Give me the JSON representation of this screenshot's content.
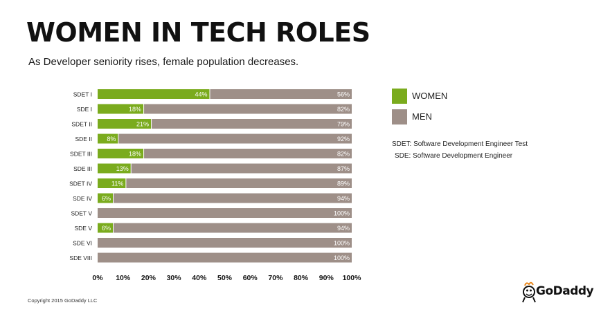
{
  "header": {
    "title": "WOMEN IN TECH ROLES",
    "subtitle": "As Developer seniority rises, female population decreases."
  },
  "legend": {
    "women": "WOMEN",
    "men": "MEN"
  },
  "notes": {
    "sdet": "SDET: Software Development Engineer Test",
    "sde": "SDE: Software Development Engineer"
  },
  "footer": {
    "copyright": "Copyright 2015 GoDaddy LLC",
    "logo_text": "GoDaddy"
  },
  "colors": {
    "women": "#7aab1d",
    "men": "#9e8f88"
  },
  "chart_data": {
    "type": "bar",
    "orientation": "horizontal",
    "stacked": true,
    "categories": [
      "SDET I",
      "SDE I",
      "SDET II",
      "SDE II",
      "SDET III",
      "SDE III",
      "SDET IV",
      "SDE IV",
      "SDET V",
      "SDE V",
      "SDE VI",
      "SDE VIII"
    ],
    "series": [
      {
        "name": "WOMEN",
        "values": [
          44,
          18,
          21,
          8,
          18,
          13,
          11,
          6,
          0,
          6,
          0,
          0
        ],
        "labels": [
          "44%",
          "18%",
          "21%",
          "8%",
          "18%",
          "13%",
          "11%",
          "6%",
          "",
          "6%",
          "",
          ""
        ]
      },
      {
        "name": "MEN",
        "values": [
          56,
          82,
          79,
          92,
          82,
          87,
          89,
          94,
          100,
          94,
          100,
          100
        ],
        "labels": [
          "56%",
          "82%",
          "79%",
          "92%",
          "82%",
          "87%",
          "89%",
          "94%",
          "100%",
          "94%",
          "100%",
          "100%"
        ]
      }
    ],
    "xlim": [
      0,
      100
    ],
    "xticks": [
      "0%",
      "10%",
      "20%",
      "30%",
      "40%",
      "50%",
      "60%",
      "70%",
      "80%",
      "90%",
      "100%"
    ],
    "grid": false,
    "legend_position": "right"
  }
}
